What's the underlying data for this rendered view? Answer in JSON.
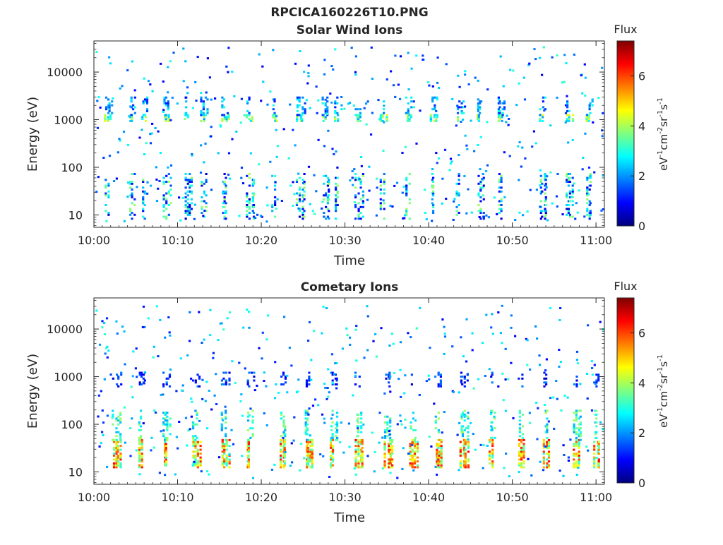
{
  "figure": {
    "title": "RPCICA160226T10.PNG"
  },
  "colorbar": {
    "label": "Flux",
    "unit_label": "eV-1cm-2sr-1s-1",
    "ticks": [
      "0",
      "2",
      "4",
      "6"
    ],
    "range": [
      0,
      7.4
    ],
    "colormap": "jet"
  },
  "chart_data": [
    {
      "type": "heatmap",
      "title": "Solar Wind Ions",
      "xlabel": "Time",
      "ylabel": "Energy (eV)",
      "x_ticks": [
        "10:00",
        "10:10",
        "10:20",
        "10:30",
        "10:40",
        "10:50",
        "11:00"
      ],
      "y_ticks": [
        "10",
        "100",
        "1000",
        "10000"
      ],
      "y_scale": "log",
      "xlim": [
        "10:00",
        "11:01"
      ],
      "ylim": [
        5.5,
        45000
      ],
      "value_label": "Flux",
      "value_range": [
        0,
        7.4
      ],
      "bands": [
        {
          "energy_range": [
            900,
            1200
          ],
          "flux_range": [
            2,
            4.5
          ],
          "note": "repeating bursts near 1000 eV"
        },
        {
          "energy_range": [
            1200,
            3000
          ],
          "flux_range": [
            1,
            3
          ],
          "note": "scattered pixels"
        },
        {
          "energy_range": [
            8,
            70
          ],
          "flux_range": [
            0.5,
            4
          ],
          "note": "vertical low-energy streaks"
        }
      ],
      "burst_times_min": [
        1.5,
        4.5,
        6,
        8.5,
        11,
        13,
        15.5,
        18.5,
        21.5,
        24.5,
        27.5,
        29,
        31.5,
        34.5,
        37.5,
        40.5,
        43.5,
        46,
        48.5,
        53.5,
        56.5,
        59
      ]
    },
    {
      "type": "heatmap",
      "title": "Cometary Ions",
      "xlabel": "Time",
      "ylabel": "Energy (eV)",
      "x_ticks": [
        "10:00",
        "10:10",
        "10:20",
        "10:30",
        "10:40",
        "10:50",
        "11:00"
      ],
      "y_ticks": [
        "10",
        "100",
        "1000",
        "10000"
      ],
      "y_scale": "log",
      "xlim": [
        "10:00",
        "11:01"
      ],
      "ylim": [
        5.5,
        45000
      ],
      "value_label": "Flux",
      "value_range": [
        0,
        7.4
      ],
      "bands": [
        {
          "energy_range": [
            12,
            45
          ],
          "flux_range": [
            3,
            6.5
          ],
          "note": "periodic intense bursts around 20 eV"
        },
        {
          "energy_range": [
            45,
            200
          ],
          "flux_range": [
            2,
            4
          ],
          "note": "scattered moderate flux"
        },
        {
          "energy_range": [
            600,
            1200
          ],
          "flux_range": [
            0.5,
            2
          ],
          "note": "weak scattered pixels"
        }
      ],
      "burst_times_min": [
        2.5,
        5.5,
        8.5,
        12,
        15.5,
        18.5,
        22.5,
        25.5,
        28.5,
        31.5,
        35,
        38,
        41,
        44,
        47.5,
        51,
        54,
        57.5,
        60
      ]
    }
  ]
}
